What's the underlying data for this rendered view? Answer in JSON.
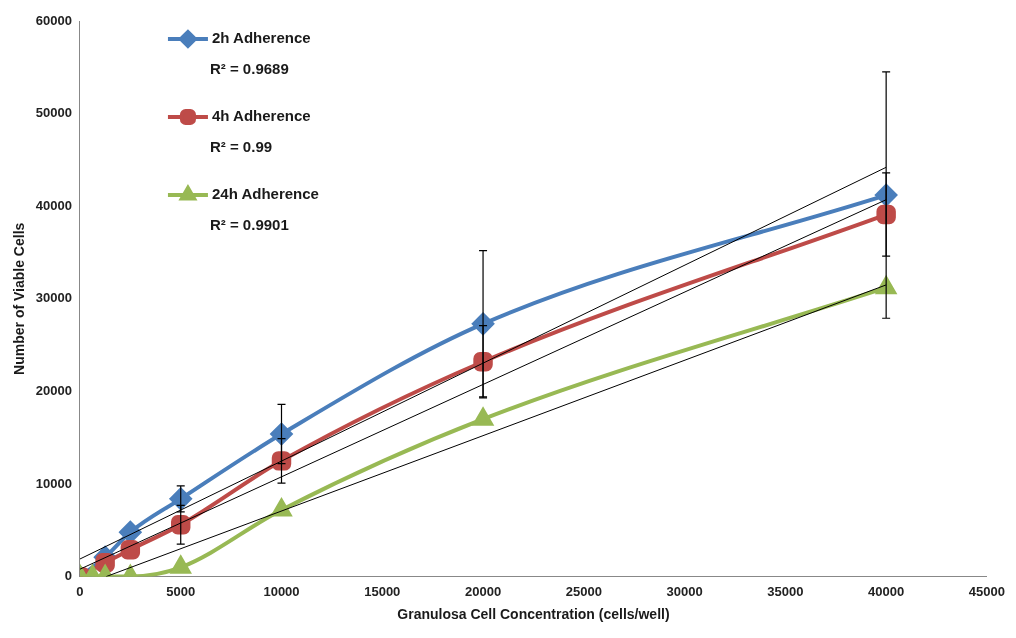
{
  "chart_data": {
    "type": "line",
    "xlabel": "Granulosa Cell Concentration (cells/well)",
    "ylabel": "Number of Viable Cells",
    "x": [
      0,
      625,
      1250,
      2500,
      5000,
      10000,
      20000,
      40000
    ],
    "series": [
      {
        "name": "2h Adherence",
        "color": "#4a7ebb",
        "marker": "diamond",
        "values": [
          0,
          null,
          2100,
          4800,
          8400,
          15400,
          27300,
          41200
        ],
        "errors": [
          null,
          null,
          null,
          null,
          1400,
          3200,
          7900,
          13300
        ]
      },
      {
        "name": "4h Adherence",
        "color": "#be4b48",
        "marker": "square",
        "values": [
          0,
          null,
          1500,
          2900,
          5600,
          12500,
          23200,
          39100
        ],
        "errors": [
          null,
          null,
          null,
          null,
          2100,
          2400,
          3900,
          4500
        ]
      },
      {
        "name": "24h Adherence",
        "color": "#98b954",
        "marker": "triangle",
        "values": [
          0,
          0,
          0,
          0,
          1000,
          7200,
          17000,
          31200
        ]
      },
      {
        "type": "line",
        "color": "#000000",
        "marker": "none",
        "x": [
          0,
          40000
        ],
        "values": [
          1900,
          44200
        ]
      },
      {
        "type": "line",
        "color": "#000000",
        "marker": "none",
        "x": [
          0,
          40000
        ],
        "values": [
          800,
          40700
        ]
      },
      {
        "type": "line",
        "color": "#000000",
        "marker": "none",
        "x": [
          1300,
          40000
        ],
        "values": [
          0,
          31500
        ]
      }
    ],
    "annotations": [
      "R² = 0.9689",
      "R² = 0.99",
      "R² = 0.9901"
    ],
    "xlim": [
      0,
      45000
    ],
    "xticks": [
      0,
      5000,
      10000,
      15000,
      20000,
      25000,
      30000,
      35000,
      40000,
      45000
    ],
    "ylim": [
      0,
      60000
    ],
    "yticks": [
      0,
      10000,
      20000,
      30000,
      40000,
      50000,
      60000
    ],
    "grid": false,
    "legend": "top left"
  }
}
